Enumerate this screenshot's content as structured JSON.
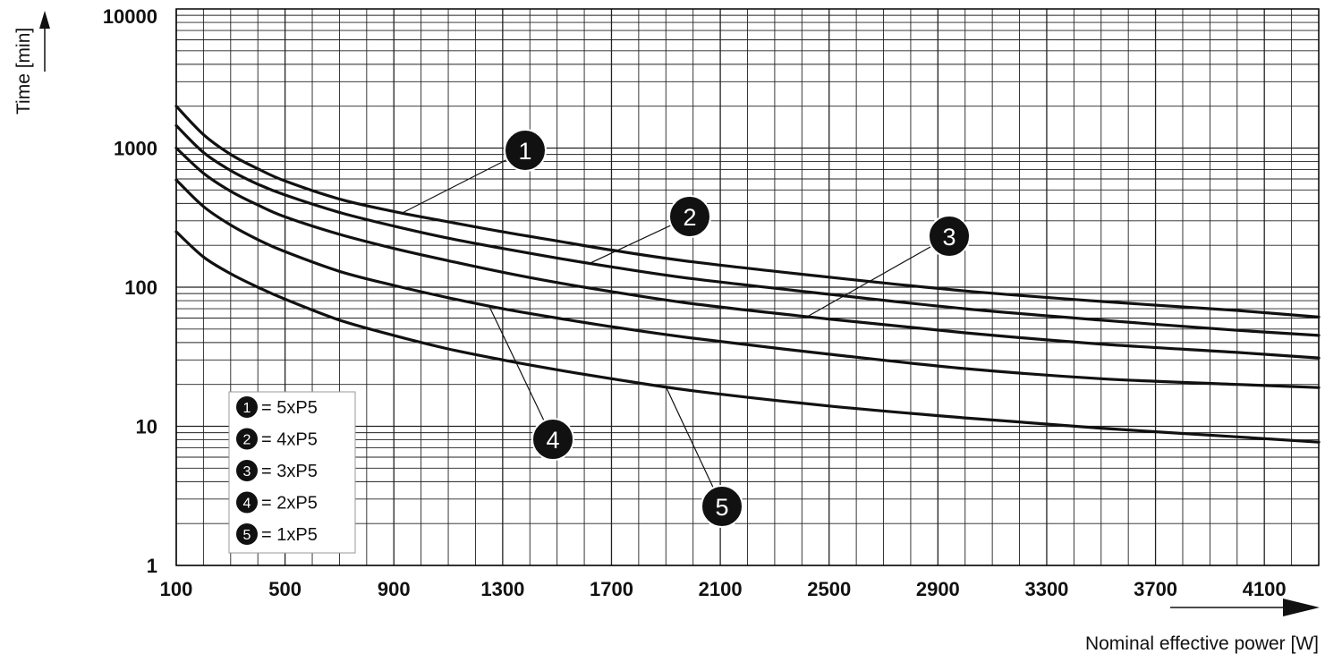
{
  "chart_data": {
    "type": "line",
    "xlabel": "Nominal effective power [W]",
    "ylabel": "Time [min]",
    "xlim": [
      100,
      4300
    ],
    "ylim": [
      1,
      10000
    ],
    "yscale": "log",
    "grid": true,
    "x_ticks": [
      "100",
      "500",
      "900",
      "1300",
      "1700",
      "2100",
      "2500",
      "2900",
      "3300",
      "3700",
      "4100"
    ],
    "y_ticks": [
      "1",
      "10",
      "100",
      "1000",
      "10000"
    ],
    "x": [
      100,
      200,
      300,
      400,
      500,
      700,
      900,
      1100,
      1300,
      1500,
      1700,
      2000,
      2500,
      3000,
      3500,
      4000,
      4300
    ],
    "series": [
      {
        "name": "5xP5",
        "marker": "1",
        "values": [
          2000,
          1250,
          900,
          710,
          580,
          430,
          350,
          295,
          250,
          215,
          185,
          152,
          118,
          94,
          79,
          68,
          61
        ]
      },
      {
        "name": "4xP5",
        "marker": "2",
        "values": [
          1450,
          930,
          690,
          550,
          460,
          345,
          275,
          225,
          190,
          162,
          140,
          115,
          89,
          70,
          58,
          49,
          45
        ]
      },
      {
        "name": "3xP5",
        "marker": "3",
        "values": [
          1000,
          660,
          490,
          390,
          320,
          240,
          190,
          155,
          128,
          108,
          93,
          76,
          59,
          47,
          39,
          34,
          31
        ]
      },
      {
        "name": "2xP5",
        "marker": "4",
        "values": [
          590,
          380,
          280,
          220,
          180,
          130,
          103,
          84,
          70,
          60,
          52,
          43,
          33,
          26,
          22,
          20,
          19
        ]
      },
      {
        "name": "1xP5",
        "marker": "5",
        "values": [
          250,
          165,
          125,
          100,
          82,
          58,
          45,
          36,
          30,
          25.5,
          22,
          18,
          14,
          11.5,
          9.7,
          8.4,
          7.7
        ]
      }
    ],
    "legend": [
      {
        "num": "1",
        "text": "= 5xP5"
      },
      {
        "num": "2",
        "text": "= 4xP5"
      },
      {
        "num": "3",
        "text": "= 3xP5"
      },
      {
        "num": "4",
        "text": "= 2xP5"
      },
      {
        "num": "5",
        "text": "= 1xP5"
      }
    ],
    "callouts": [
      {
        "num": "1",
        "series": 0,
        "x": 930
      },
      {
        "num": "2",
        "series": 1,
        "x": 1620
      },
      {
        "num": "3",
        "series": 2,
        "x": 2420
      },
      {
        "num": "4",
        "series": 3,
        "x": 1250
      },
      {
        "num": "5",
        "series": 4,
        "x": 1900
      }
    ]
  }
}
